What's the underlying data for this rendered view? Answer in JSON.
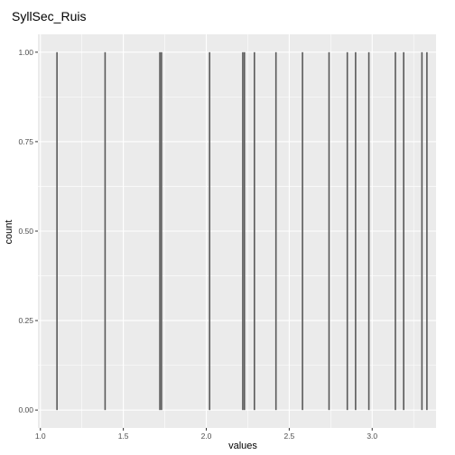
{
  "chart_data": {
    "type": "histogram",
    "title": "SyllSec_Ruis",
    "xlabel": "values",
    "ylabel": "count",
    "xlim": [
      0.985,
      3.385
    ],
    "ylim": [
      -0.05,
      1.05
    ],
    "x_ticks": [
      1.0,
      1.5,
      2.0,
      2.5,
      3.0
    ],
    "x_tick_labels": [
      "1.0",
      "1.5",
      "2.0",
      "2.5",
      "3.0"
    ],
    "y_ticks": [
      0.0,
      0.25,
      0.5,
      0.75,
      1.0
    ],
    "y_tick_labels": [
      "0.00",
      "0.25",
      "0.50",
      "0.75",
      "1.00"
    ],
    "grid": true,
    "bar_color": "#595959",
    "panel_color": "#ebebeb",
    "grid_color": "#ffffff",
    "values": [
      1.1,
      1.39,
      1.72,
      1.73,
      2.02,
      2.22,
      2.23,
      2.29,
      2.42,
      2.58,
      2.74,
      2.85,
      2.9,
      2.98,
      3.14,
      3.19,
      3.3,
      3.33
    ],
    "counts": [
      1,
      1,
      1,
      1,
      1,
      1,
      1,
      1,
      1,
      1,
      1,
      1,
      1,
      1,
      1,
      1,
      1,
      1
    ]
  }
}
